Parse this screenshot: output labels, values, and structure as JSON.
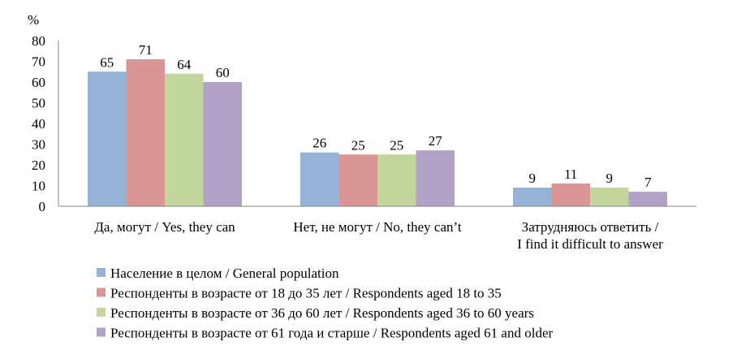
{
  "chart_data": {
    "type": "bar",
    "ylabel": "%",
    "ylim": [
      0,
      80
    ],
    "yticks": [
      "0",
      "10",
      "20",
      "30",
      "40",
      "50",
      "60",
      "70",
      "80"
    ],
    "grid": false,
    "legend_position": "bottom-left",
    "categories": [
      [
        "Да, могут / Yes, they can"
      ],
      [
        "Нет, не могут / No, they can’t"
      ],
      [
        "Затрудняюсь ответить /",
        "I find it difficult to answer"
      ]
    ],
    "series": [
      {
        "name": "Население в целом / General population",
        "color": "#95B3D7",
        "values": [
          65,
          26,
          9
        ]
      },
      {
        "name": "Респонденты в возрасте от 18 до 35 лет / Respondents aged 18 to 35",
        "color": "#D99694",
        "values": [
          71,
          25,
          11
        ]
      },
      {
        "name": "Респонденты в возрасте от 36 до 60 лет / Respondents aged 36 to 60 years",
        "color": "#C3D69B",
        "values": [
          64,
          25,
          9
        ]
      },
      {
        "name": "Респонденты в возрасте от 61 года и старше / Respondents aged 61 and older",
        "color": "#B2A2C7",
        "values": [
          60,
          27,
          7
        ]
      }
    ]
  }
}
